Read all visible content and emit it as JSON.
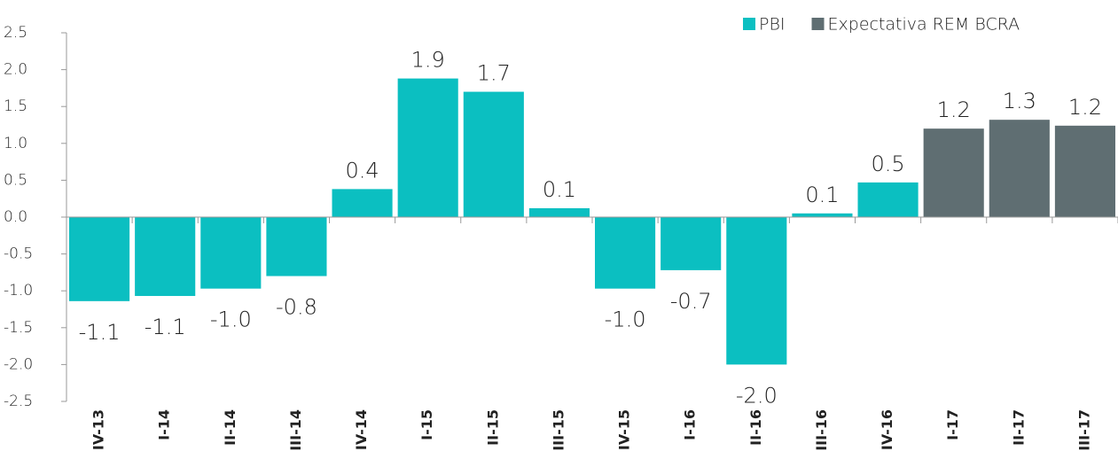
{
  "chart_data": {
    "type": "bar",
    "categories": [
      "IV-13",
      "I-14",
      "II-14",
      "III-14",
      "IV-14",
      "I-15",
      "II-15",
      "III-15",
      "IV-15",
      "I-16",
      "II-16",
      "III-16",
      "IV-16",
      "I-17",
      "II-17",
      "III-17"
    ],
    "series": [
      {
        "name": "PBI",
        "color": "#0bbfc1",
        "values": [
          -1.14,
          -1.07,
          -0.97,
          -0.8,
          0.38,
          1.88,
          1.7,
          0.12,
          -0.97,
          -0.72,
          -2.0,
          0.05,
          0.47,
          null,
          null,
          null
        ],
        "value_labels": [
          "-1.1",
          "-1.1",
          "-1.0",
          "-0.8",
          "0.4",
          "1.9",
          "1.7",
          "0.1",
          "-1.0",
          "-0.7",
          "-2.0",
          "0.1",
          "0.5",
          null,
          null,
          null
        ]
      },
      {
        "name": "Expectativa REM BCRA",
        "color": "#5f6e72",
        "values": [
          null,
          null,
          null,
          null,
          null,
          null,
          null,
          null,
          null,
          null,
          null,
          null,
          null,
          1.2,
          1.32,
          1.24
        ],
        "value_labels": [
          null,
          null,
          null,
          null,
          null,
          null,
          null,
          null,
          null,
          null,
          null,
          null,
          null,
          "1.2",
          "1.3",
          "1.2"
        ]
      }
    ],
    "ylim": [
      -2.5,
      2.5
    ],
    "yticks": [
      2.5,
      {
        "value": 2,
        "label": "2.0"
      },
      1.5,
      {
        "value": 1,
        "label": "1.0"
      },
      0.5,
      {
        "value": 0,
        "label": "0.0"
      },
      -0.5,
      {
        "value": -1,
        "label": "-1.0"
      },
      -1.5,
      {
        "value": -2,
        "label": "-2.0"
      },
      -2.5
    ],
    "legend": "top-right"
  }
}
